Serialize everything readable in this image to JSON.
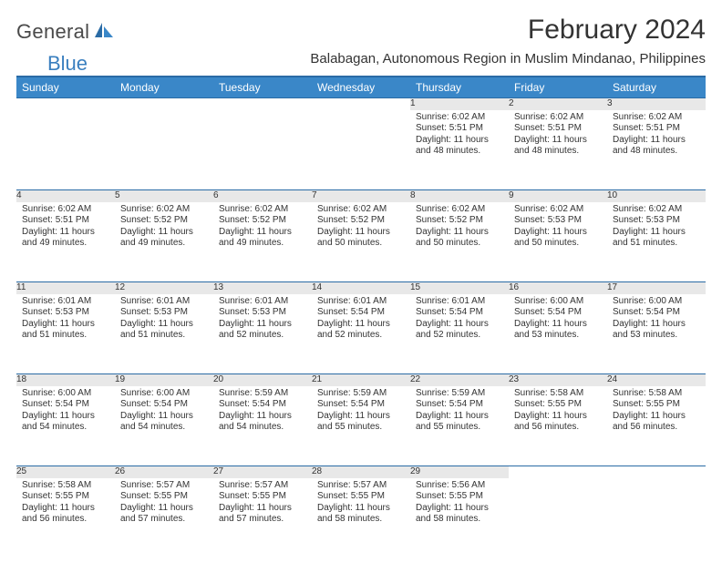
{
  "logo": {
    "text1": "General",
    "text2": "Blue"
  },
  "title": "February 2024",
  "subtitle": "Balabagan, Autonomous Region in Muslim Mindanao, Philippines",
  "colors": {
    "header_bg": "#3a87c8",
    "header_border": "#2a6ba5",
    "daynum_bg": "#e8e8e8",
    "text": "#333333"
  },
  "day_labels": [
    "Sunday",
    "Monday",
    "Tuesday",
    "Wednesday",
    "Thursday",
    "Friday",
    "Saturday"
  ],
  "weeks": [
    [
      null,
      null,
      null,
      null,
      {
        "n": "1",
        "sr": "Sunrise: 6:02 AM",
        "ss": "Sunset: 5:51 PM",
        "dl": "Daylight: 11 hours and 48 minutes."
      },
      {
        "n": "2",
        "sr": "Sunrise: 6:02 AM",
        "ss": "Sunset: 5:51 PM",
        "dl": "Daylight: 11 hours and 48 minutes."
      },
      {
        "n": "3",
        "sr": "Sunrise: 6:02 AM",
        "ss": "Sunset: 5:51 PM",
        "dl": "Daylight: 11 hours and 48 minutes."
      }
    ],
    [
      {
        "n": "4",
        "sr": "Sunrise: 6:02 AM",
        "ss": "Sunset: 5:51 PM",
        "dl": "Daylight: 11 hours and 49 minutes."
      },
      {
        "n": "5",
        "sr": "Sunrise: 6:02 AM",
        "ss": "Sunset: 5:52 PM",
        "dl": "Daylight: 11 hours and 49 minutes."
      },
      {
        "n": "6",
        "sr": "Sunrise: 6:02 AM",
        "ss": "Sunset: 5:52 PM",
        "dl": "Daylight: 11 hours and 49 minutes."
      },
      {
        "n": "7",
        "sr": "Sunrise: 6:02 AM",
        "ss": "Sunset: 5:52 PM",
        "dl": "Daylight: 11 hours and 50 minutes."
      },
      {
        "n": "8",
        "sr": "Sunrise: 6:02 AM",
        "ss": "Sunset: 5:52 PM",
        "dl": "Daylight: 11 hours and 50 minutes."
      },
      {
        "n": "9",
        "sr": "Sunrise: 6:02 AM",
        "ss": "Sunset: 5:53 PM",
        "dl": "Daylight: 11 hours and 50 minutes."
      },
      {
        "n": "10",
        "sr": "Sunrise: 6:02 AM",
        "ss": "Sunset: 5:53 PM",
        "dl": "Daylight: 11 hours and 51 minutes."
      }
    ],
    [
      {
        "n": "11",
        "sr": "Sunrise: 6:01 AM",
        "ss": "Sunset: 5:53 PM",
        "dl": "Daylight: 11 hours and 51 minutes."
      },
      {
        "n": "12",
        "sr": "Sunrise: 6:01 AM",
        "ss": "Sunset: 5:53 PM",
        "dl": "Daylight: 11 hours and 51 minutes."
      },
      {
        "n": "13",
        "sr": "Sunrise: 6:01 AM",
        "ss": "Sunset: 5:53 PM",
        "dl": "Daylight: 11 hours and 52 minutes."
      },
      {
        "n": "14",
        "sr": "Sunrise: 6:01 AM",
        "ss": "Sunset: 5:54 PM",
        "dl": "Daylight: 11 hours and 52 minutes."
      },
      {
        "n": "15",
        "sr": "Sunrise: 6:01 AM",
        "ss": "Sunset: 5:54 PM",
        "dl": "Daylight: 11 hours and 52 minutes."
      },
      {
        "n": "16",
        "sr": "Sunrise: 6:00 AM",
        "ss": "Sunset: 5:54 PM",
        "dl": "Daylight: 11 hours and 53 minutes."
      },
      {
        "n": "17",
        "sr": "Sunrise: 6:00 AM",
        "ss": "Sunset: 5:54 PM",
        "dl": "Daylight: 11 hours and 53 minutes."
      }
    ],
    [
      {
        "n": "18",
        "sr": "Sunrise: 6:00 AM",
        "ss": "Sunset: 5:54 PM",
        "dl": "Daylight: 11 hours and 54 minutes."
      },
      {
        "n": "19",
        "sr": "Sunrise: 6:00 AM",
        "ss": "Sunset: 5:54 PM",
        "dl": "Daylight: 11 hours and 54 minutes."
      },
      {
        "n": "20",
        "sr": "Sunrise: 5:59 AM",
        "ss": "Sunset: 5:54 PM",
        "dl": "Daylight: 11 hours and 54 minutes."
      },
      {
        "n": "21",
        "sr": "Sunrise: 5:59 AM",
        "ss": "Sunset: 5:54 PM",
        "dl": "Daylight: 11 hours and 55 minutes."
      },
      {
        "n": "22",
        "sr": "Sunrise: 5:59 AM",
        "ss": "Sunset: 5:54 PM",
        "dl": "Daylight: 11 hours and 55 minutes."
      },
      {
        "n": "23",
        "sr": "Sunrise: 5:58 AM",
        "ss": "Sunset: 5:55 PM",
        "dl": "Daylight: 11 hours and 56 minutes."
      },
      {
        "n": "24",
        "sr": "Sunrise: 5:58 AM",
        "ss": "Sunset: 5:55 PM",
        "dl": "Daylight: 11 hours and 56 minutes."
      }
    ],
    [
      {
        "n": "25",
        "sr": "Sunrise: 5:58 AM",
        "ss": "Sunset: 5:55 PM",
        "dl": "Daylight: 11 hours and 56 minutes."
      },
      {
        "n": "26",
        "sr": "Sunrise: 5:57 AM",
        "ss": "Sunset: 5:55 PM",
        "dl": "Daylight: 11 hours and 57 minutes."
      },
      {
        "n": "27",
        "sr": "Sunrise: 5:57 AM",
        "ss": "Sunset: 5:55 PM",
        "dl": "Daylight: 11 hours and 57 minutes."
      },
      {
        "n": "28",
        "sr": "Sunrise: 5:57 AM",
        "ss": "Sunset: 5:55 PM",
        "dl": "Daylight: 11 hours and 58 minutes."
      },
      {
        "n": "29",
        "sr": "Sunrise: 5:56 AM",
        "ss": "Sunset: 5:55 PM",
        "dl": "Daylight: 11 hours and 58 minutes."
      },
      null,
      null
    ]
  ]
}
